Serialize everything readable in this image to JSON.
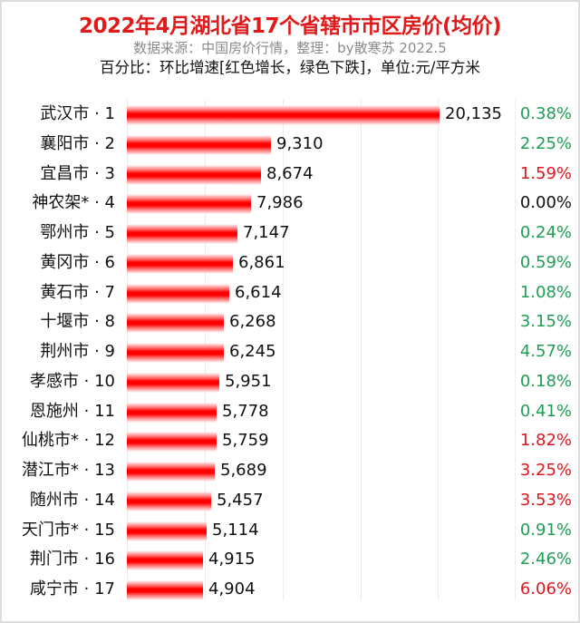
{
  "header": {
    "title": "2022年4月湖北省17个省辖市市区房价(均价)",
    "subtitle": "数据来源：中国房价行情，整理：by散寒苏 2022.5",
    "note": "百分比：环比增速[红色增长，绿色下跌]，单位:元/平方米"
  },
  "colors": {
    "title": "#e01a1a",
    "subtitle": "#8a8a8a",
    "bar": "#ff0000",
    "increase": "#e0161e",
    "decrease": "#1f9e54",
    "neutral": "#111111"
  },
  "chart_data": {
    "type": "bar",
    "orientation": "horizontal",
    "title": "2022年4月湖北省17个省辖市市区房价(均价)",
    "subtitle": "数据来源：中国房价行情，整理：by散寒苏 2022.5",
    "annotation": "百分比：环比增速[红色增长，绿色下跌]，单位:元/平方米",
    "xlabel": "",
    "ylabel": "",
    "xlim": [
      0,
      20000
    ],
    "grid": true,
    "gridlines": [
      5000,
      10000,
      15000,
      20000
    ],
    "legend": null,
    "categories": [
      "武汉市 · 1",
      "襄阳市 · 2",
      "宜昌市 · 3",
      "神农架* · 4",
      "鄂州市 · 5",
      "黄冈市 · 6",
      "黄石市 · 7",
      "十堰市 · 8",
      "荆州市 · 9",
      "孝感市 · 10",
      "恩施州 · 11",
      "仙桃市* · 12",
      "潜江市* · 13",
      "随州市 · 14",
      "天门市* · 15",
      "荆门市 · 16",
      "咸宁市 · 17"
    ],
    "series": [
      {
        "name": "均价(元/平方米)",
        "values": [
          20135,
          9310,
          8674,
          7986,
          7147,
          6861,
          6614,
          6268,
          6245,
          5951,
          5778,
          5759,
          5689,
          5457,
          5114,
          4915,
          4904
        ]
      },
      {
        "name": "环比增速",
        "values": [
          "0.38%",
          "2.25%",
          "1.59%",
          "0.00%",
          "0.24%",
          "0.59%",
          "1.08%",
          "3.15%",
          "4.57%",
          "0.18%",
          "0.41%",
          "1.82%",
          "3.25%",
          "3.53%",
          "0.91%",
          "2.46%",
          "6.06%"
        ],
        "direction": [
          "down",
          "down",
          "up",
          "flat",
          "down",
          "down",
          "down",
          "down",
          "down",
          "down",
          "down",
          "up",
          "up",
          "up",
          "down",
          "down",
          "up"
        ]
      }
    ]
  },
  "rows": [
    {
      "label": "武汉市 · 1",
      "value": "20,135",
      "num": 20135,
      "pct": "0.38%",
      "dir": "down"
    },
    {
      "label": "襄阳市 · 2",
      "value": "9,310",
      "num": 9310,
      "pct": "2.25%",
      "dir": "down"
    },
    {
      "label": "宜昌市 · 3",
      "value": "8,674",
      "num": 8674,
      "pct": "1.59%",
      "dir": "up"
    },
    {
      "label": "神农架* · 4",
      "value": "7,986",
      "num": 7986,
      "pct": "0.00%",
      "dir": "flat"
    },
    {
      "label": "鄂州市 · 5",
      "value": "7,147",
      "num": 7147,
      "pct": "0.24%",
      "dir": "down"
    },
    {
      "label": "黄冈市 · 6",
      "value": "6,861",
      "num": 6861,
      "pct": "0.59%",
      "dir": "down"
    },
    {
      "label": "黄石市 · 7",
      "value": "6,614",
      "num": 6614,
      "pct": "1.08%",
      "dir": "down"
    },
    {
      "label": "十堰市 · 8",
      "value": "6,268",
      "num": 6268,
      "pct": "3.15%",
      "dir": "down"
    },
    {
      "label": "荆州市 · 9",
      "value": "6,245",
      "num": 6245,
      "pct": "4.57%",
      "dir": "down"
    },
    {
      "label": "孝感市 · 10",
      "value": "5,951",
      "num": 5951,
      "pct": "0.18%",
      "dir": "down"
    },
    {
      "label": "恩施州 · 11",
      "value": "5,778",
      "num": 5778,
      "pct": "0.41%",
      "dir": "down"
    },
    {
      "label": "仙桃市* · 12",
      "value": "5,759",
      "num": 5759,
      "pct": "1.82%",
      "dir": "up"
    },
    {
      "label": "潜江市* · 13",
      "value": "5,689",
      "num": 5689,
      "pct": "3.25%",
      "dir": "up"
    },
    {
      "label": "随州市 · 14",
      "value": "5,457",
      "num": 5457,
      "pct": "3.53%",
      "dir": "up"
    },
    {
      "label": "天门市* · 15",
      "value": "5,114",
      "num": 5114,
      "pct": "0.91%",
      "dir": "down"
    },
    {
      "label": "荆门市 · 16",
      "value": "4,915",
      "num": 4915,
      "pct": "2.46%",
      "dir": "down"
    },
    {
      "label": "咸宁市 · 17",
      "value": "4,904",
      "num": 4904,
      "pct": "6.06%",
      "dir": "up"
    }
  ]
}
